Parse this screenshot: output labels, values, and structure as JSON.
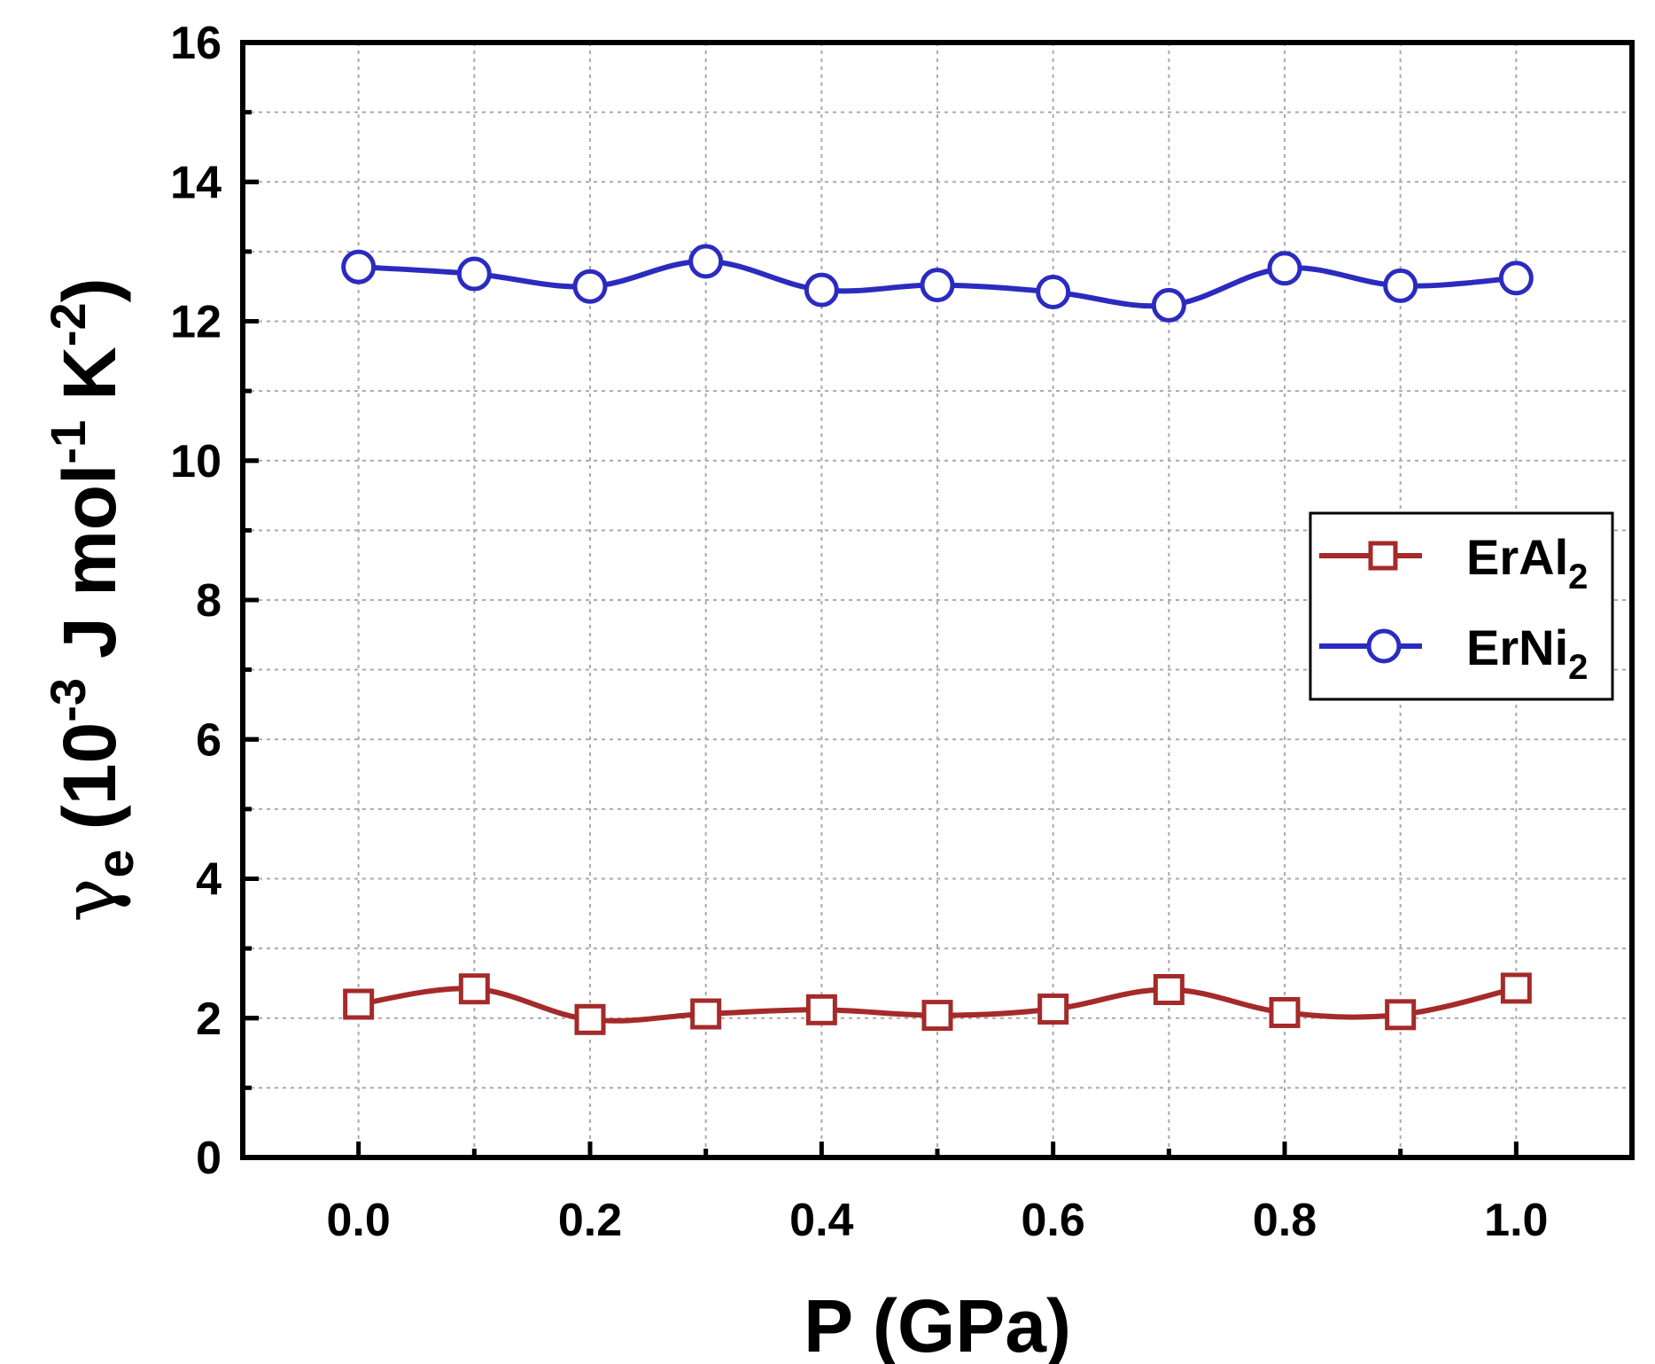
{
  "chart_data": {
    "type": "line",
    "title": "",
    "xlabel": "P (GPa)",
    "ylabel": {
      "symbol": "γ",
      "symbol_sub": "e",
      "open": "(10",
      "exp1": "-3",
      "unit1": "J mol",
      "exp2": "-1",
      "unit2": "K",
      "exp3": "-2",
      "close": ")"
    },
    "xlim": [
      -0.1,
      1.1
    ],
    "ylim": [
      0,
      16
    ],
    "xticks": [
      0.0,
      0.2,
      0.4,
      0.6,
      0.8,
      1.0
    ],
    "xtick_labels": [
      "0.0",
      "0.2",
      "0.4",
      "0.6",
      "0.8",
      "1.0"
    ],
    "yticks": [
      0,
      2,
      4,
      6,
      8,
      10,
      12,
      14,
      16
    ],
    "ytick_labels": [
      "0",
      "2",
      "4",
      "6",
      "8",
      "10",
      "12",
      "14",
      "16"
    ],
    "grid": true,
    "legend_position": "right",
    "x": [
      0.0,
      0.1,
      0.2,
      0.3,
      0.4,
      0.5,
      0.6,
      0.7,
      0.8,
      0.9,
      1.0
    ],
    "series": [
      {
        "name": "ErAl",
        "name_sub": "2",
        "marker": "square",
        "color": "#a52a2a",
        "values": [
          2.2,
          2.42,
          1.98,
          2.06,
          2.12,
          2.04,
          2.13,
          2.41,
          2.08,
          2.05,
          2.43
        ]
      },
      {
        "name": "ErNi",
        "name_sub": "2",
        "marker": "circle",
        "color": "#2b2bbf",
        "values": [
          12.78,
          12.68,
          12.5,
          12.86,
          12.45,
          12.52,
          12.42,
          12.23,
          12.76,
          12.51,
          12.62
        ]
      }
    ]
  }
}
